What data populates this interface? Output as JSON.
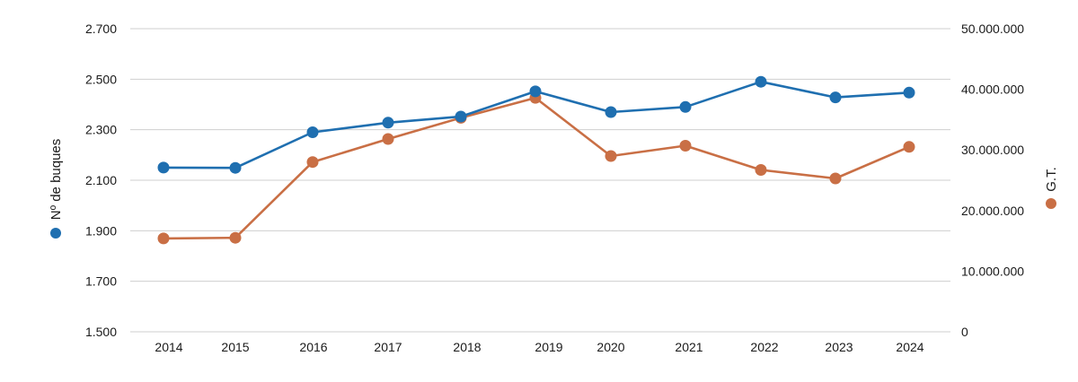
{
  "chart_data": {
    "type": "line",
    "categories": [
      "2014",
      "2015",
      "2016",
      "2017",
      "2018",
      "2019",
      "2020",
      "2021",
      "2022",
      "2023",
      "2024"
    ],
    "y_left": {
      "label": "Nº de buques",
      "range": [
        1500,
        2700
      ],
      "ticks": [
        "1.500",
        "1.700",
        "1.900",
        "2.100",
        "2.300",
        "2.500",
        "2.700"
      ]
    },
    "y_right": {
      "label": "G.T.",
      "range": [
        0,
        50000000
      ],
      "ticks": [
        "0",
        "10.000.000",
        "20.000.000",
        "30.000.000",
        "40.000.000",
        "50.000.000"
      ]
    },
    "series": [
      {
        "name": "Nº de buques",
        "axis": "left",
        "color": "#1f6fb0",
        "values": [
          2150,
          2149,
          2290,
          2328,
          2352,
          2452,
          2370,
          2390,
          2490,
          2428,
          2447
        ]
      },
      {
        "name": "G.T.",
        "axis": "right",
        "color": "#c96f45",
        "values": [
          15400000,
          15500000,
          28000000,
          31800000,
          35300000,
          38600000,
          29000000,
          30700000,
          26700000,
          25300000,
          30500000
        ]
      }
    ],
    "grid": true,
    "legend": "axis labels"
  }
}
